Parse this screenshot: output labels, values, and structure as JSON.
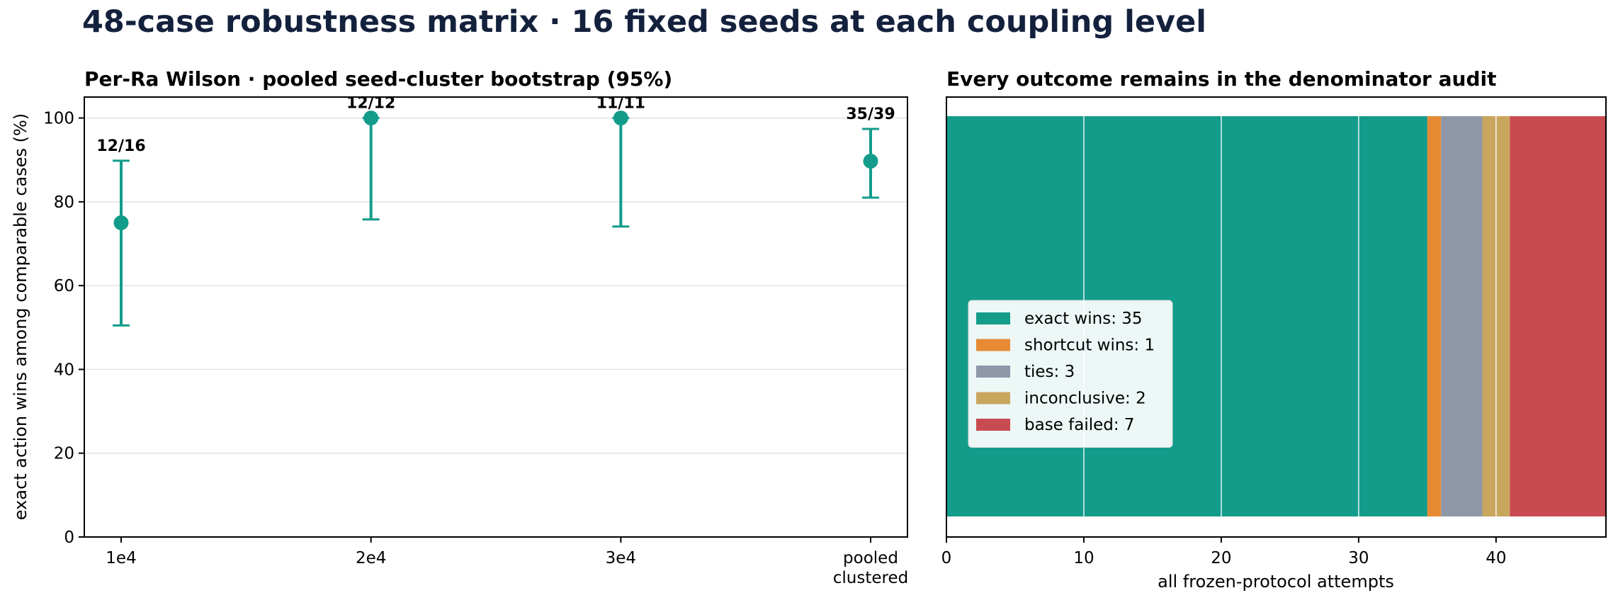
{
  "figure": {
    "title": "48-case robustness matrix · 16 fixed seeds at each coupling level",
    "title_color": "#14213d"
  },
  "chart_data": [
    {
      "type": "scatter",
      "subtype": "point-with-error-bars",
      "title": "Per-Ra Wilson · pooled seed-cluster bootstrap (95%)",
      "xlabel": "",
      "ylabel": "exact action wins among comparable cases (%)",
      "categories": [
        "1e4",
        "2e4",
        "3e4",
        "pooled\nclustered"
      ],
      "values": [
        75.0,
        100.0,
        100.0,
        89.7
      ],
      "ci_low": [
        50.5,
        75.8,
        74.1,
        81.0
      ],
      "ci_high": [
        89.8,
        100.0,
        100.0,
        97.4
      ],
      "labels": [
        "12/16",
        "12/12",
        "11/11",
        "35/39"
      ],
      "ylim": [
        0,
        105
      ],
      "yticks": [
        0,
        20,
        40,
        60,
        80,
        100
      ],
      "grid": "y",
      "color": "#139c8a"
    },
    {
      "type": "bar",
      "subtype": "stacked-horizontal",
      "title": "Every outcome remains in the denominator audit",
      "xlabel": "all frozen-protocol attempts",
      "ylabel": "",
      "xlim": [
        0,
        48
      ],
      "xticks": [
        0,
        10,
        20,
        30,
        40
      ],
      "grid": "x",
      "legend_position": "center-left",
      "series": [
        {
          "name": "exact wins: 35",
          "value": 35,
          "color": "#139c8a"
        },
        {
          "name": "shortcut wins: 1",
          "value": 1,
          "color": "#e68a33"
        },
        {
          "name": "ties: 3",
          "value": 3,
          "color": "#8e97a8"
        },
        {
          "name": "inconclusive: 2",
          "value": 2,
          "color": "#c8a65e"
        },
        {
          "name": "base failed: 7",
          "value": 7,
          "color": "#c84b52"
        }
      ]
    }
  ]
}
